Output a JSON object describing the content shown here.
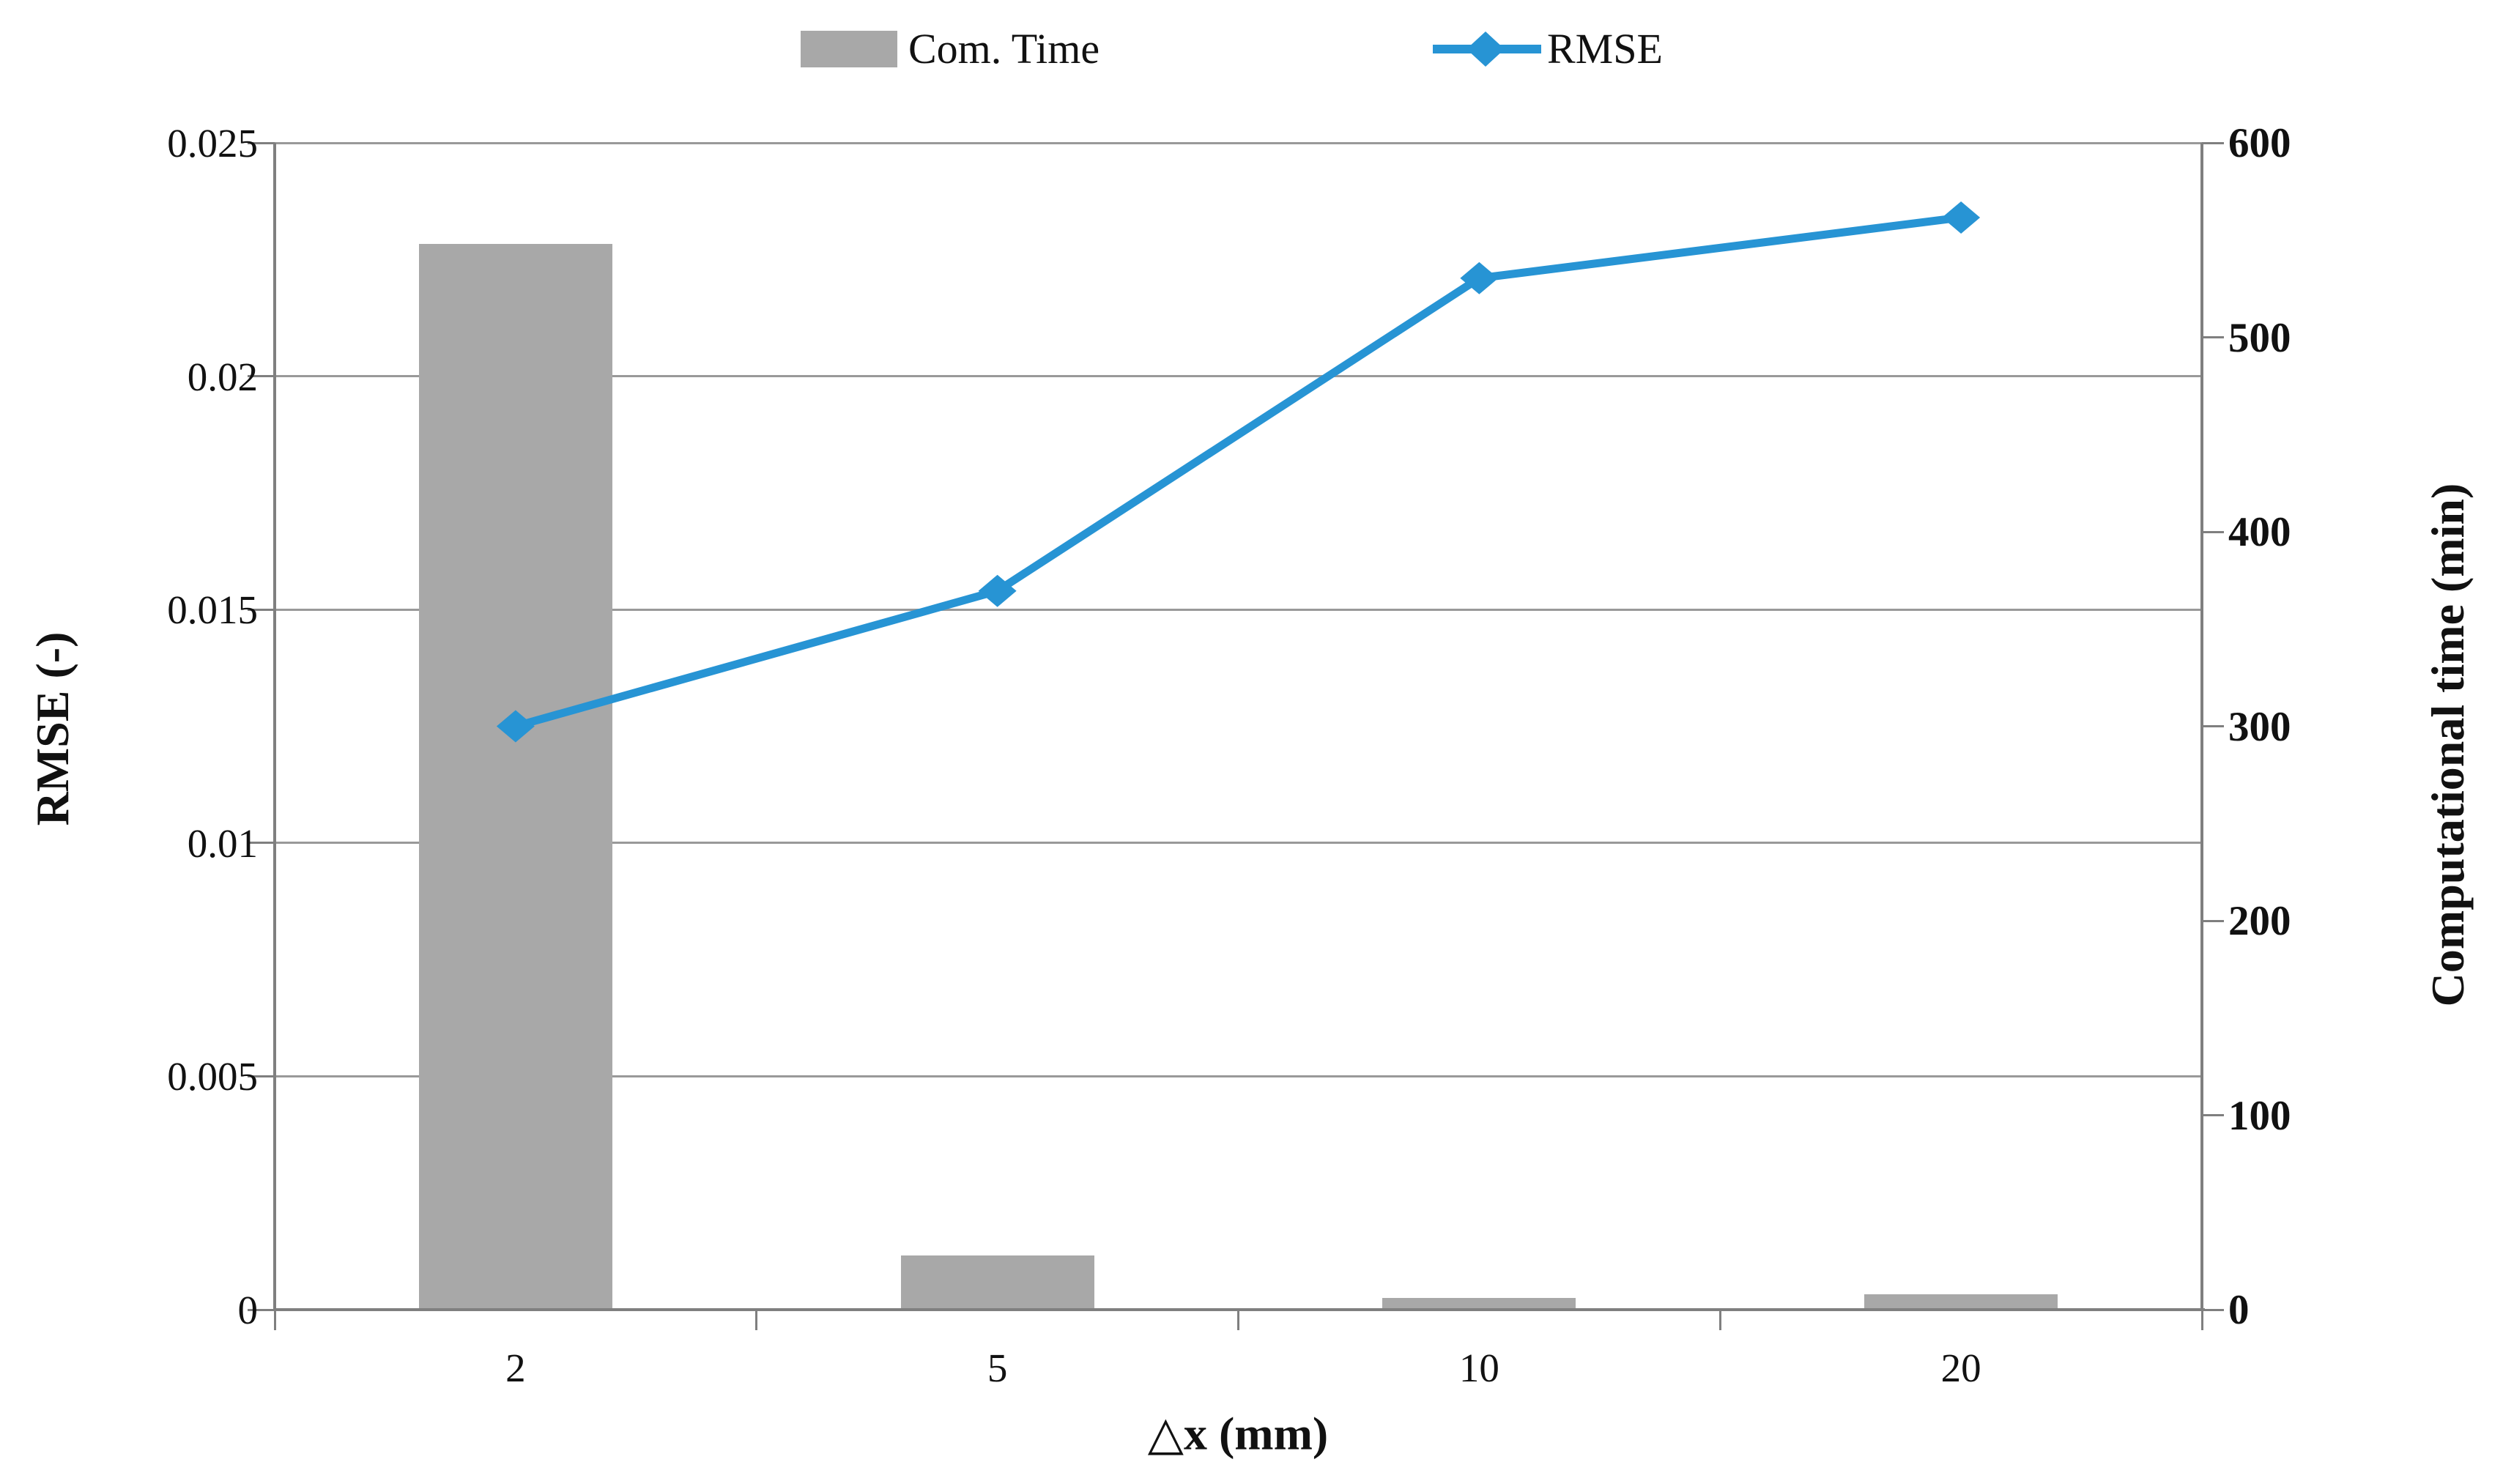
{
  "chart_data": {
    "type": "bar+line combo",
    "categories": [
      "2",
      "5",
      "10",
      "20"
    ],
    "series": [
      {
        "name": "Com. Time",
        "type": "bar",
        "axis": "right",
        "values": [
          548,
          28,
          6,
          8
        ],
        "color": "#A8A8A8"
      },
      {
        "name": "RMSE",
        "type": "line",
        "axis": "left",
        "values": [
          0.0125,
          0.0154,
          0.0221,
          0.0234
        ],
        "color": "#2794D4",
        "marker": "diamond"
      }
    ],
    "title": "",
    "xlabel": "△x (mm)",
    "left_axis": {
      "label": "RMSE (-)",
      "min": 0,
      "max": 0.025,
      "tick_labels": [
        "0.025",
        "0.02",
        "0.015",
        "0.01",
        "0.005",
        "0"
      ]
    },
    "right_axis": {
      "label": "Computational time (min)",
      "min": 0,
      "max": 600,
      "tick_labels": [
        "600",
        "500",
        "400",
        "300",
        "200",
        "100",
        "0"
      ]
    },
    "legend": {
      "position": "top",
      "bar_label": "Com. Time",
      "line_label": "RMSE"
    },
    "grid": "horizontal only",
    "colors": {
      "bar": "#A8A8A8",
      "line": "#2794D4",
      "gridline": "#999999",
      "axis": "#7f7f7f",
      "text": "#111111"
    }
  }
}
